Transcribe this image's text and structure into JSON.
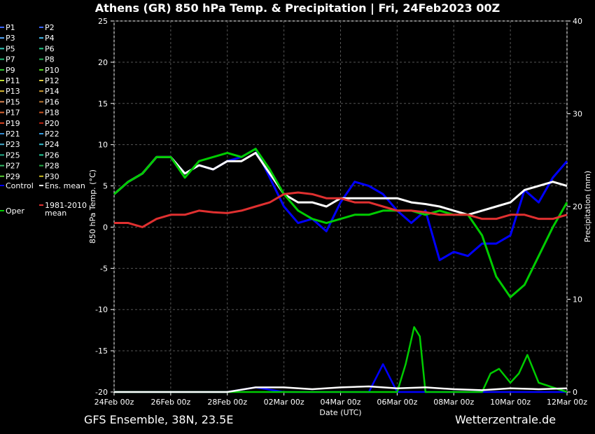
{
  "title": "Athens  (GR)  850 hPa Temp. & Precipitation | Fri, 24Feb2023 00Z",
  "footer_left": "GFS Ensemble, 38N, 23.5E",
  "footer_right": "Wetterzentrale.de",
  "chart_data": {
    "type": "line",
    "xlabel": "Date (UTC)",
    "ylabel": "850 hPa Temp. (°C)",
    "ylabel_right": "Precipitation (mm)",
    "ylim": [
      -20,
      25
    ],
    "ylim_right": [
      0,
      40
    ],
    "yticks": [
      25,
      20,
      15,
      10,
      5,
      0,
      -5,
      -10,
      -15,
      -20
    ],
    "yticks_right": [
      40,
      30,
      20,
      10,
      0
    ],
    "xticks": [
      "24Feb 00z",
      "26Feb 00z",
      "28Feb 00z",
      "02Mar 00z",
      "04Mar 00z",
      "06Mar 00z",
      "08Mar 00z",
      "10Mar 00z",
      "12Mar 00z"
    ],
    "x_days": [
      0,
      2,
      4,
      6,
      8,
      10,
      12,
      14,
      16
    ],
    "grid": true,
    "legend": [
      {
        "name": "P1",
        "color": "#3a66ff"
      },
      {
        "name": "P2",
        "color": "#3a66ff"
      },
      {
        "name": "P3",
        "color": "#55aaff"
      },
      {
        "name": "P4",
        "color": "#44bbee"
      },
      {
        "name": "P5",
        "color": "#33ccbb"
      },
      {
        "name": "P6",
        "color": "#22cc88"
      },
      {
        "name": "P7",
        "color": "#22bb77"
      },
      {
        "name": "P8",
        "color": "#22aa55"
      },
      {
        "name": "P9",
        "color": "#33cc33"
      },
      {
        "name": "P10",
        "color": "#55dd22"
      },
      {
        "name": "P11",
        "color": "#bbdd33"
      },
      {
        "name": "P12",
        "color": "#ddcc44"
      },
      {
        "name": "P13",
        "color": "#ddbb33"
      },
      {
        "name": "P14",
        "color": "#cc9933"
      },
      {
        "name": "P15",
        "color": "#dd8855"
      },
      {
        "name": "P16",
        "color": "#bb7733"
      },
      {
        "name": "P17",
        "color": "#dd6633"
      },
      {
        "name": "P18",
        "color": "#cc5522"
      },
      {
        "name": "P19",
        "color": "#dd4422"
      },
      {
        "name": "P20",
        "color": "#bb2211"
      },
      {
        "name": "P21",
        "color": "#3388cc"
      },
      {
        "name": "P22",
        "color": "#3399dd"
      },
      {
        "name": "P23",
        "color": "#44aacc"
      },
      {
        "name": "P24",
        "color": "#33bbcc"
      },
      {
        "name": "P25",
        "color": "#22aa88"
      },
      {
        "name": "P26",
        "color": "#22cc99"
      },
      {
        "name": "P27",
        "color": "#33bb66"
      },
      {
        "name": "P28",
        "color": "#22aa44"
      },
      {
        "name": "P29",
        "color": "#55cc33"
      },
      {
        "name": "P30",
        "color": "#ccbb22"
      },
      {
        "name": "Control",
        "color": "#0000ff"
      },
      {
        "name": "Ens. mean",
        "color": "#ffffff"
      },
      {
        "name": "Oper",
        "color": "#00cc00"
      },
      {
        "name": "1981-2010 mean",
        "color": "#e03030"
      }
    ],
    "series": [
      {
        "name": "Control",
        "color": "#0000ff",
        "x": [
          0,
          0.5,
          1,
          1.5,
          2,
          2.5,
          3,
          3.5,
          4,
          4.5,
          5,
          5.5,
          6,
          6.5,
          7,
          7.5,
          8,
          8.5,
          9,
          9.5,
          10,
          10.5,
          11,
          11.5,
          12,
          12.5,
          13,
          13.5,
          14,
          14.5,
          15,
          15.5,
          16
        ],
        "values": [
          4,
          5.5,
          6.5,
          8.5,
          8.5,
          6.5,
          7.5,
          7,
          8,
          8.5,
          9.5,
          6,
          2.5,
          0.5,
          1,
          -0.5,
          3,
          5.5,
          5,
          4,
          2,
          0.5,
          2,
          -4,
          -3,
          -3.5,
          -2,
          -2,
          -1,
          4.5,
          3,
          6,
          8
        ]
      },
      {
        "name": "Ens. mean",
        "color": "#ffffff",
        "x": [
          0,
          0.5,
          1,
          1.5,
          2,
          2.5,
          3,
          3.5,
          4,
          4.5,
          5,
          5.5,
          6,
          6.5,
          7,
          7.5,
          8,
          8.5,
          9,
          9.5,
          10,
          10.5,
          11,
          11.5,
          12,
          12.5,
          13,
          13.5,
          14,
          14.5,
          15,
          15.5,
          16
        ],
        "values": [
          4,
          5.5,
          6.5,
          8.5,
          8.5,
          6.5,
          7.5,
          7,
          8,
          8,
          9,
          6.5,
          4,
          3,
          3,
          2.5,
          3.5,
          3.5,
          3.5,
          3.5,
          3.5,
          3,
          2.8,
          2.5,
          2,
          1.5,
          2,
          2.5,
          3,
          4.5,
          5,
          5.5,
          5
        ]
      },
      {
        "name": "Oper",
        "color": "#00cc00",
        "x": [
          0,
          0.5,
          1,
          1.5,
          2,
          2.5,
          3,
          3.5,
          4,
          4.5,
          5,
          5.5,
          6,
          6.5,
          7,
          7.5,
          8,
          8.5,
          9,
          9.5,
          10,
          10.5,
          11,
          11.5,
          12,
          12.5,
          13,
          13.5,
          14,
          14.5,
          15,
          15.5,
          16
        ],
        "values": [
          4,
          5.5,
          6.5,
          8.5,
          8.5,
          6,
          8,
          8.5,
          9,
          8.5,
          9.5,
          7,
          4,
          2,
          1,
          0.5,
          1,
          1.5,
          1.5,
          2,
          2,
          2,
          1.5,
          2,
          1.5,
          1.5,
          -1,
          -6,
          -8.5,
          -7,
          -3.5,
          0,
          3
        ]
      },
      {
        "name": "1981-2010 mean",
        "color": "#e03030",
        "x": [
          0,
          0.5,
          1,
          1.5,
          2,
          2.5,
          3,
          3.5,
          4,
          4.5,
          5,
          5.5,
          6,
          6.5,
          7,
          7.5,
          8,
          8.5,
          9,
          9.5,
          10,
          10.5,
          11,
          11.5,
          12,
          12.5,
          13,
          13.5,
          14,
          14.5,
          15,
          15.5,
          16
        ],
        "values": [
          0.5,
          0.5,
          0,
          1,
          1.5,
          1.5,
          2,
          1.8,
          1.7,
          2,
          2.5,
          3,
          4,
          4.2,
          4,
          3.5,
          3.5,
          3,
          3,
          2.5,
          2,
          2,
          1.8,
          1.5,
          1.5,
          1.5,
          1,
          1,
          1.5,
          1.5,
          1,
          1,
          1.5
        ]
      }
    ],
    "precip_series": [
      {
        "name": "Control",
        "color": "#0000ff",
        "x": [
          0,
          1,
          2,
          3,
          4,
          5,
          6,
          7,
          8,
          9,
          9.5,
          10,
          10.5,
          11,
          12,
          13,
          14,
          15,
          16
        ],
        "values": [
          0,
          0,
          0,
          0,
          0,
          0.5,
          0,
          0,
          0,
          0,
          3,
          0,
          0,
          0,
          0,
          0,
          0,
          0,
          0
        ]
      },
      {
        "name": "Oper",
        "color": "#00cc00",
        "x": [
          0,
          1,
          2,
          3,
          4,
          5,
          6,
          7,
          8,
          9,
          9.5,
          10,
          10.3,
          10.6,
          10.8,
          11,
          12,
          12.5,
          13,
          13.3,
          13.6,
          14,
          14.3,
          14.6,
          15,
          16
        ],
        "values": [
          0,
          0,
          0,
          0,
          0,
          0,
          0,
          0,
          0,
          0,
          0,
          0,
          3,
          7,
          6,
          0,
          0,
          0,
          0,
          2,
          2.5,
          1,
          2,
          4,
          1,
          0
        ]
      },
      {
        "name": "Ens. mean",
        "color": "#ffffff",
        "x": [
          0,
          1,
          2,
          3,
          4,
          5,
          6,
          7,
          8,
          9,
          10,
          11,
          12,
          13,
          14,
          15,
          16
        ],
        "values": [
          0,
          0,
          0,
          0,
          0,
          0.5,
          0.5,
          0.3,
          0.5,
          0.6,
          0.4,
          0.5,
          0.3,
          0.2,
          0.4,
          0.3,
          0.4
        ]
      }
    ]
  }
}
